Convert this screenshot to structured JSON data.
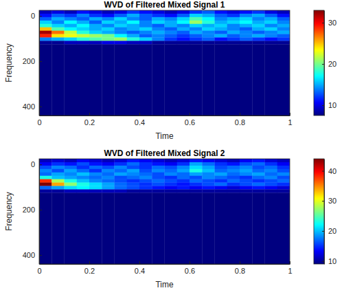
{
  "chart_data": [
    {
      "type": "heatmap",
      "title": "WVD of Filtered Mixed Signal 1",
      "x_label": "Time",
      "y_label": "Frequency",
      "xlim": [
        0,
        1
      ],
      "ylim": [
        440,
        -25
      ],
      "xticks": [
        0,
        0.2,
        0.4,
        0.6,
        0.8,
        1
      ],
      "yticks": [
        0,
        200,
        400
      ],
      "x_edges": [
        0,
        0.05,
        0.1,
        0.15,
        0.2,
        0.25,
        0.3,
        0.35,
        0.4,
        0.45,
        0.5,
        0.55,
        0.6,
        0.65,
        0.7,
        0.75,
        0.8,
        0.85,
        0.9,
        0.95,
        1
      ],
      "y_edges": [
        -25,
        -10,
        5,
        20,
        35,
        50,
        65,
        80,
        95,
        110,
        125,
        440
      ],
      "cells": [
        [
          9,
          10,
          9,
          11,
          10,
          9,
          10,
          12,
          11,
          10,
          9,
          10,
          12,
          13,
          11,
          10,
          11,
          12,
          10,
          9
        ],
        [
          11,
          13,
          12,
          14,
          12,
          11,
          13,
          15,
          13,
          12,
          11,
          13,
          16,
          15,
          13,
          12,
          14,
          15,
          13,
          11
        ],
        [
          13,
          15,
          14,
          13,
          15,
          14,
          16,
          14,
          13,
          15,
          14,
          16,
          19,
          17,
          14,
          15,
          16,
          14,
          15,
          13
        ],
        [
          16,
          14,
          17,
          15,
          13,
          16,
          15,
          17,
          14,
          16,
          15,
          17,
          21,
          18,
          15,
          16,
          17,
          15,
          16,
          14
        ],
        [
          18,
          16,
          15,
          17,
          15,
          14,
          16,
          15,
          14,
          13,
          15,
          14,
          16,
          15,
          16,
          14,
          15,
          16,
          14,
          15
        ],
        [
          25,
          19,
          17,
          16,
          15,
          16,
          14,
          15,
          16,
          14,
          13,
          15,
          14,
          16,
          15,
          14,
          13,
          15,
          16,
          14
        ],
        [
          32,
          27,
          22,
          18,
          16,
          15,
          14,
          13,
          14,
          15,
          14,
          13,
          15,
          14,
          13,
          15,
          14,
          13,
          14,
          15
        ],
        [
          29,
          24,
          23,
          22,
          21,
          20,
          17,
          15,
          13,
          14,
          13,
          12,
          13,
          14,
          15,
          13,
          14,
          15,
          14,
          13
        ],
        [
          14,
          15,
          16,
          18,
          19,
          20,
          21,
          18,
          16,
          14,
          12,
          11,
          12,
          13,
          11,
          12,
          13,
          12,
          11,
          12
        ],
        [
          8,
          8,
          9,
          9,
          9,
          10,
          10,
          9,
          9,
          8,
          8,
          8,
          8,
          8,
          8,
          8,
          8,
          8,
          8,
          8
        ],
        [
          7.5,
          7.5,
          7.5,
          7.5,
          7.5,
          7.5,
          7.5,
          7.5,
          7.5,
          7.5,
          7.5,
          7.5,
          7.5,
          7.5,
          7.5,
          7.5,
          7.5,
          7.5,
          7.5,
          7.5
        ]
      ],
      "clim": [
        7.5,
        33
      ],
      "cticks": [
        10,
        20,
        30
      ]
    },
    {
      "type": "heatmap",
      "title": "WVD of Filtered Mixed Signal 2",
      "x_label": "Time",
      "y_label": "Frequency",
      "xlim": [
        0,
        1
      ],
      "ylim": [
        440,
        -25
      ],
      "xticks": [
        0,
        0.2,
        0.4,
        0.6,
        0.8,
        1
      ],
      "yticks": [
        0,
        200,
        400
      ],
      "x_edges": [
        0,
        0.05,
        0.1,
        0.15,
        0.2,
        0.25,
        0.3,
        0.35,
        0.4,
        0.45,
        0.5,
        0.55,
        0.6,
        0.65,
        0.7,
        0.75,
        0.8,
        0.85,
        0.9,
        0.95,
        1
      ],
      "y_edges": [
        -25,
        -10,
        5,
        20,
        35,
        50,
        65,
        80,
        95,
        110,
        125,
        440
      ],
      "cells": [
        [
          11,
          12,
          11,
          13,
          12,
          11,
          12,
          14,
          13,
          12,
          11,
          12,
          14,
          13,
          12,
          11,
          13,
          14,
          12,
          11
        ],
        [
          13,
          15,
          14,
          16,
          14,
          13,
          15,
          17,
          15,
          14,
          13,
          15,
          19,
          17,
          15,
          14,
          16,
          17,
          15,
          13
        ],
        [
          16,
          18,
          17,
          15,
          17,
          16,
          18,
          16,
          15,
          17,
          16,
          18,
          21,
          19,
          16,
          17,
          18,
          16,
          17,
          15
        ],
        [
          18,
          16,
          19,
          17,
          15,
          18,
          17,
          19,
          16,
          18,
          17,
          19,
          23,
          20,
          17,
          18,
          19,
          17,
          18,
          16
        ],
        [
          17,
          19,
          18,
          20,
          18,
          17,
          19,
          18,
          17,
          16,
          18,
          17,
          19,
          18,
          19,
          17,
          18,
          19,
          17,
          18
        ],
        [
          23,
          20,
          19,
          18,
          17,
          18,
          16,
          17,
          18,
          16,
          15,
          17,
          16,
          18,
          17,
          16,
          15,
          17,
          18,
          16
        ],
        [
          38,
          28,
          23,
          20,
          18,
          17,
          16,
          15,
          16,
          17,
          16,
          15,
          17,
          16,
          15,
          17,
          16,
          15,
          16,
          17
        ],
        [
          44,
          34,
          27,
          23,
          21,
          19,
          17,
          16,
          15,
          16,
          15,
          14,
          15,
          16,
          17,
          15,
          16,
          17,
          16,
          15
        ],
        [
          17,
          19,
          21,
          22,
          21,
          19,
          17,
          16,
          15,
          14,
          13,
          14,
          13,
          14,
          13,
          12,
          13,
          14,
          13,
          12
        ],
        [
          10,
          10,
          11,
          11,
          11,
          11,
          11,
          10,
          10,
          10,
          10,
          10,
          10,
          10,
          10,
          10,
          10,
          10,
          10,
          10
        ],
        [
          9,
          9,
          9,
          9,
          9,
          9,
          9,
          9,
          9,
          9,
          9,
          9,
          9,
          9,
          9,
          9,
          9,
          9,
          9,
          9
        ]
      ],
      "clim": [
        9,
        44
      ],
      "cticks": [
        10,
        20,
        30,
        40
      ]
    }
  ]
}
